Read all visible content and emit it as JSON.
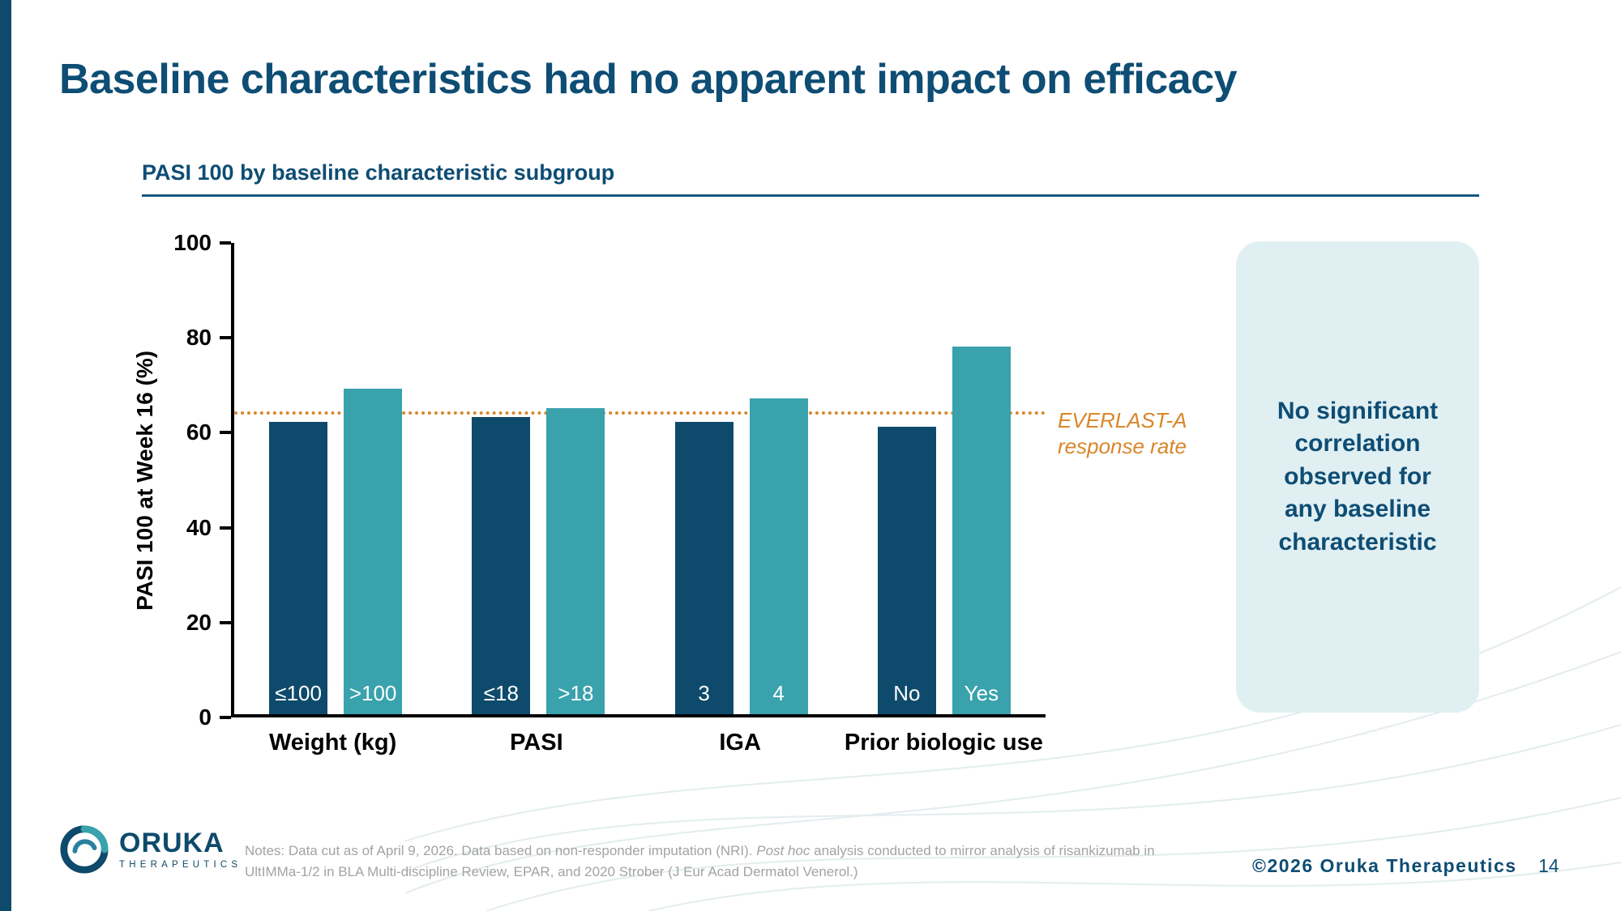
{
  "slide": {
    "title": "Baseline characteristics had no apparent impact on efficacy"
  },
  "chart_data": {
    "type": "bar",
    "title": "PASI 100 by baseline characteristic subgroup",
    "ylabel": "PASI 100 at Week 16 (%)",
    "ylim": [
      0,
      100
    ],
    "yticks": [
      0,
      20,
      40,
      60,
      80,
      100
    ],
    "grid": false,
    "legend": "none",
    "bar_colors": [
      "#0e4a6b",
      "#39a2ac"
    ],
    "groups": [
      {
        "label": "Weight (kg)",
        "bars": [
          {
            "label": "≤100",
            "value": 62
          },
          {
            "label": ">100",
            "value": 69
          }
        ]
      },
      {
        "label": "PASI",
        "bars": [
          {
            "label": "≤18",
            "value": 63
          },
          {
            "label": ">18",
            "value": 65
          }
        ]
      },
      {
        "label": "IGA",
        "bars": [
          {
            "label": "3",
            "value": 62
          },
          {
            "label": "4",
            "value": 67
          }
        ]
      },
      {
        "label": "Prior biologic use",
        "bars": [
          {
            "label": "No",
            "value": 61
          },
          {
            "label": "Yes",
            "value": 78
          }
        ]
      }
    ],
    "reference_line": {
      "value": 63.5,
      "color": "#d8862b",
      "style": "dotted",
      "label": "EVERLAST-A response rate",
      "label_lines": [
        "EVERLAST-A",
        "response rate"
      ]
    }
  },
  "callout": {
    "text": "No significant correlation observed for any baseline characteristic"
  },
  "logo": {
    "wordmark": "ORUKA",
    "subtext": "THERAPEUTICS"
  },
  "footer": {
    "notes_prefix": "Notes: Data cut as of April 9, 2026. Data based on non-responder imputation (NRI). ",
    "notes_italic": "Post hoc",
    "notes_line1_rest": " analysis conducted to mirror analysis of risankizumab in",
    "notes_line2": "UltIMMa-1/2 in BLA Multi-discipline Review, EPAR, and 2020 Strober (J Eur Acad Dermatol Venerol.)",
    "copyright": "©2026 Oruka Therapeutics",
    "page_number": "14"
  },
  "colors": {
    "title": "#0e4d74",
    "accent_bar": "#0e4a6b",
    "dark_bar": "#0e4a6b",
    "teal_bar": "#39a2ac",
    "callout_bg": "#e0eff2",
    "reference": "#d8862b"
  }
}
